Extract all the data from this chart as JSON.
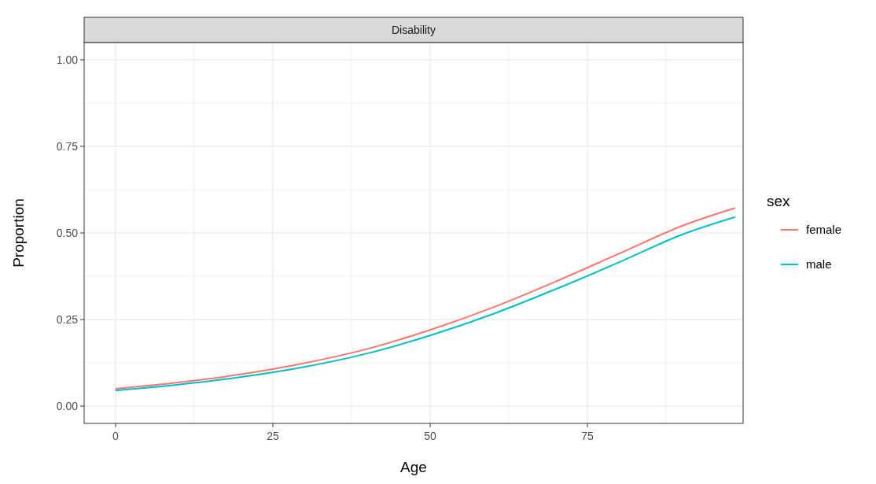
{
  "chart_data": {
    "type": "line",
    "title": "Disability",
    "xlabel": "Age",
    "ylabel": "Proportion",
    "legend_title": "sex",
    "xlim": [
      -5,
      99.75
    ],
    "xticks": [
      0,
      {
        "value": 12.5,
        "label": null
      },
      25,
      {
        "value": 37.5,
        "label": null
      },
      50,
      {
        "value": 62.5,
        "label": null
      },
      75,
      {
        "value": 87.5,
        "label": null
      }
    ],
    "ylim": [
      -0.05,
      1.05
    ],
    "yticks": [
      {
        "value": 0,
        "label": "0.00"
      },
      {
        "value": 0.125,
        "label": null
      },
      {
        "value": 0.25,
        "label": "0.25"
      },
      {
        "value": 0.375,
        "label": null
      },
      {
        "value": 0.5,
        "label": "0.50"
      },
      {
        "value": 0.625,
        "label": null
      },
      {
        "value": 0.75,
        "label": "0.75"
      },
      {
        "value": 0.875,
        "label": null
      },
      {
        "value": 1,
        "label": "1.00"
      }
    ],
    "grid": true,
    "legend": "right",
    "line_style": "solid",
    "marker": "none",
    "x": [
      0,
      10,
      20,
      30,
      40,
      50,
      60,
      70,
      80,
      90,
      98.5
    ],
    "series": [
      {
        "name": "female",
        "color": "#f8766d",
        "values": [
          0.05,
          0.068,
          0.092,
          0.124,
          0.165,
          0.22,
          0.285,
          0.36,
          0.44,
          0.52,
          0.572
        ]
      },
      {
        "name": "male",
        "color": "#00bfc4",
        "values": [
          0.045,
          0.062,
          0.084,
          0.113,
          0.152,
          0.204,
          0.266,
          0.338,
          0.415,
          0.495,
          0.546
        ]
      }
    ]
  }
}
